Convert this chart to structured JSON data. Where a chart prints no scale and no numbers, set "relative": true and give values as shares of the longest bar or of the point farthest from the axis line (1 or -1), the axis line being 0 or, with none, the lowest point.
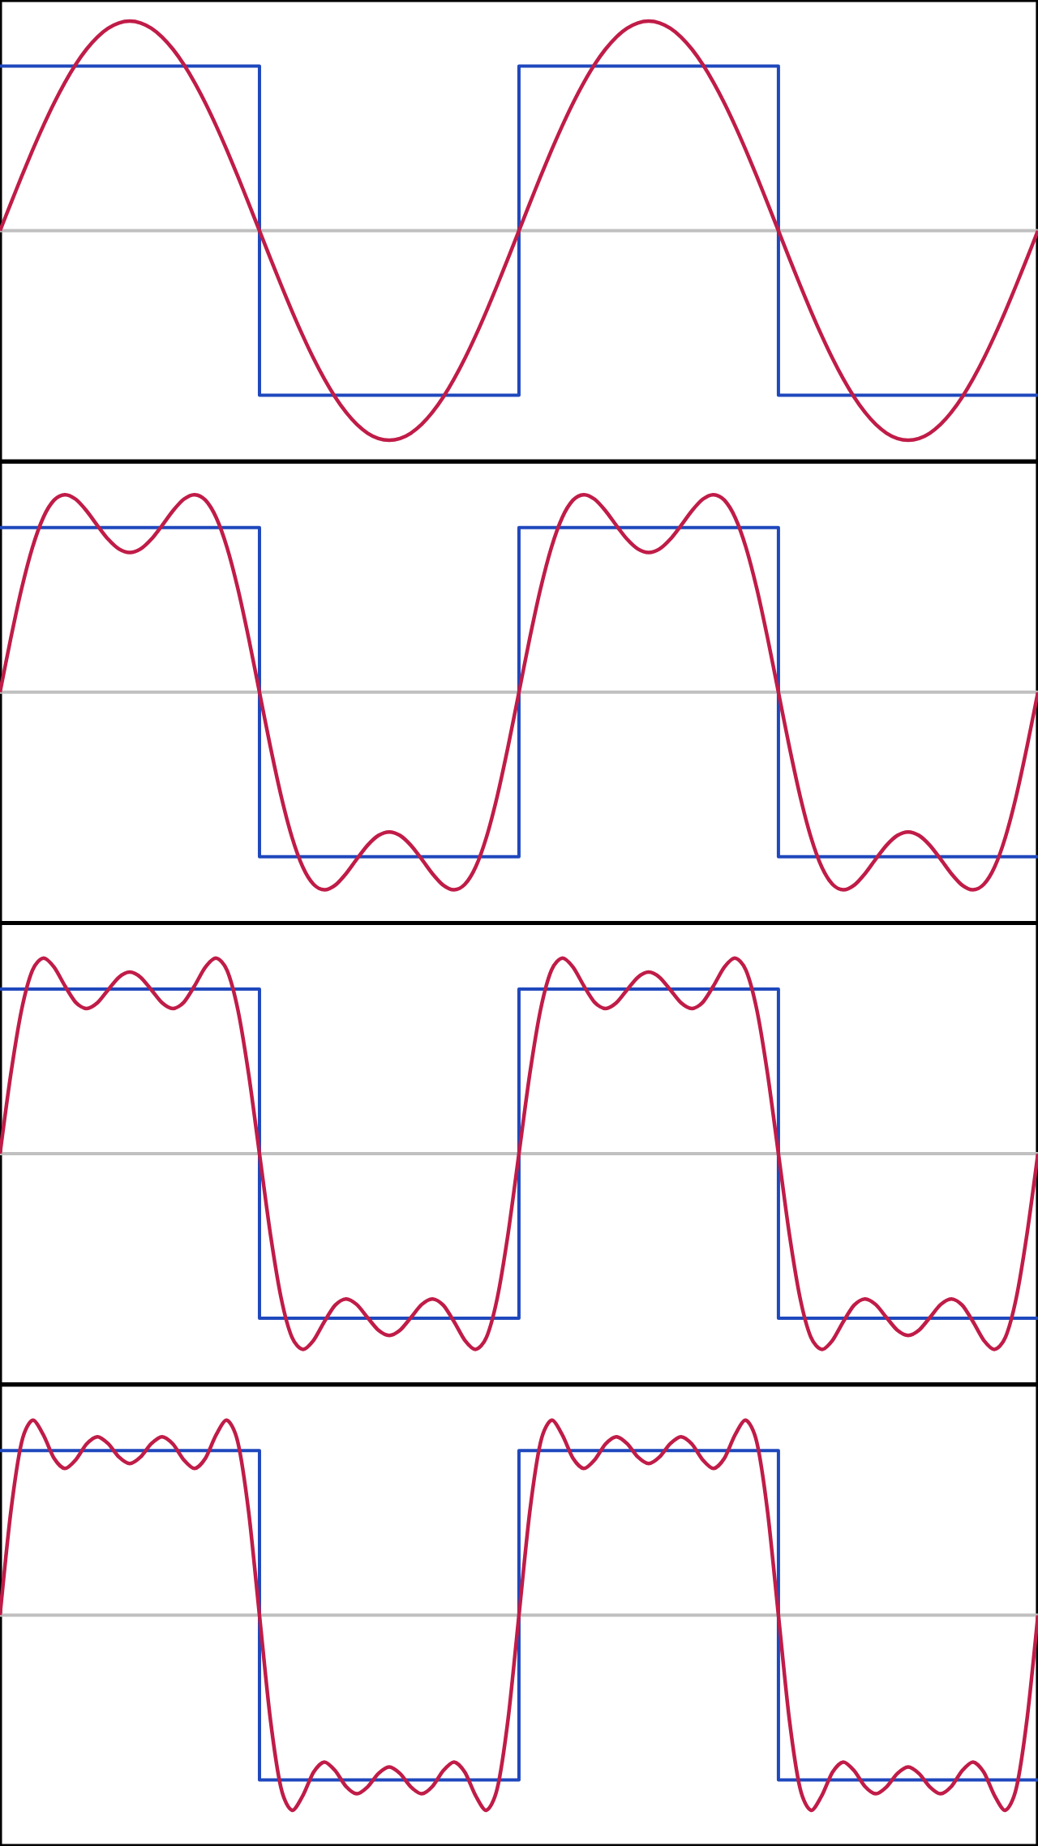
{
  "chart_data": [
    {
      "type": "line",
      "relative": true,
      "categories": [
        null,
        null,
        null,
        null,
        null,
        null,
        null,
        null,
        null,
        null,
        null,
        null,
        null,
        null,
        null,
        null,
        null,
        null,
        null,
        null,
        null,
        null,
        null,
        null,
        null,
        null,
        null,
        null,
        null,
        null,
        null,
        null,
        null,
        null,
        null,
        null,
        null,
        null,
        null,
        null,
        null,
        null,
        null,
        null,
        null,
        null,
        null,
        null,
        null,
        null,
        null,
        null,
        null,
        null,
        null,
        null,
        null,
        null,
        null,
        null,
        null,
        null,
        null,
        null,
        null,
        null,
        null,
        null,
        null,
        null,
        null,
        null,
        null,
        null,
        null,
        null,
        null,
        null,
        null,
        null,
        null,
        null,
        null,
        null,
        null,
        null,
        null,
        null,
        null,
        null,
        null,
        null,
        null,
        null,
        null,
        null,
        null
      ],
      "ref_lines": [
        {
          "axis": "y",
          "value": 0,
          "color": "#c0c0c0"
        }
      ],
      "series": [
        {
          "type": "step",
          "color": "#1f48bd",
          "values": [
            0.7854,
            0.7854,
            0.7854,
            0.7854,
            0.7854,
            0.7854,
            0.7854,
            0.7854,
            0.7854,
            0.7854,
            0.7854,
            0.7854,
            0.7854,
            0.7854,
            0.7854,
            0.7854,
            0.7854,
            0.7854,
            0.7854,
            0.7854,
            0.7854,
            0.7854,
            0.7854,
            0.7854,
            -0.7854,
            -0.7854,
            -0.7854,
            -0.7854,
            -0.7854,
            -0.7854,
            -0.7854,
            -0.7854,
            -0.7854,
            -0.7854,
            -0.7854,
            -0.7854,
            -0.7854,
            -0.7854,
            -0.7854,
            -0.7854,
            -0.7854,
            -0.7854,
            -0.7854,
            -0.7854,
            -0.7854,
            -0.7854,
            -0.7854,
            -0.7854,
            0.7854,
            0.7854,
            0.7854,
            0.7854,
            0.7854,
            0.7854,
            0.7854,
            0.7854,
            0.7854,
            0.7854,
            0.7854,
            0.7854,
            0.7854,
            0.7854,
            0.7854,
            0.7854,
            0.7854,
            0.7854,
            0.7854,
            0.7854,
            0.7854,
            0.7854,
            0.7854,
            0.7854,
            -0.7854,
            -0.7854,
            -0.7854,
            -0.7854,
            -0.7854,
            -0.7854,
            -0.7854,
            -0.7854,
            -0.7854,
            -0.7854,
            -0.7854,
            -0.7854,
            -0.7854,
            -0.7854,
            -0.7854,
            -0.7854,
            -0.7854,
            -0.7854,
            -0.7854,
            -0.7854,
            -0.7854,
            -0.7854,
            -0.7854,
            -0.7854,
            -0.7854
          ]
        },
        {
          "color": "#c01c48",
          "values": [
            0,
            0.1305,
            0.2588,
            0.3827,
            0.5,
            0.6088,
            0.7071,
            0.7934,
            0.866,
            0.9239,
            0.9659,
            0.9914,
            1,
            0.9914,
            0.9659,
            0.9239,
            0.866,
            0.7934,
            0.7071,
            0.6088,
            0.5,
            0.3827,
            0.2588,
            0.1305,
            0,
            -0.1305,
            -0.2588,
            -0.3827,
            -0.5,
            -0.6088,
            -0.7071,
            -0.7934,
            -0.866,
            -0.9239,
            -0.9659,
            -0.9914,
            -1,
            -0.9914,
            -0.9659,
            -0.9239,
            -0.866,
            -0.7934,
            -0.7071,
            -0.6088,
            -0.5,
            -0.3827,
            -0.2588,
            -0.1305,
            0,
            0.1305,
            0.2588,
            0.3827,
            0.5,
            0.6088,
            0.7071,
            0.7934,
            0.866,
            0.9239,
            0.9659,
            0.9914,
            1,
            0.9914,
            0.9659,
            0.9239,
            0.866,
            0.7934,
            0.7071,
            0.6088,
            0.5,
            0.3827,
            0.2588,
            0.1305,
            0,
            -0.1305,
            -0.2588,
            -0.3827,
            -0.5,
            -0.6088,
            -0.7071,
            -0.7934,
            -0.866,
            -0.9239,
            -0.9659,
            -0.9914,
            -1,
            -0.9914,
            -0.9659,
            -0.9239,
            -0.866,
            -0.7934,
            -0.7071,
            -0.6088,
            -0.5,
            -0.3827,
            -0.2588,
            -0.1305,
            0
          ]
        }
      ]
    },
    {
      "type": "line",
      "relative": true,
      "categories": [
        null,
        null,
        null,
        null,
        null,
        null,
        null,
        null,
        null,
        null,
        null,
        null,
        null,
        null,
        null,
        null,
        null,
        null,
        null,
        null,
        null,
        null,
        null,
        null,
        null,
        null,
        null,
        null,
        null,
        null,
        null,
        null,
        null,
        null,
        null,
        null,
        null,
        null,
        null,
        null,
        null,
        null,
        null,
        null,
        null,
        null,
        null,
        null,
        null,
        null,
        null,
        null,
        null,
        null,
        null,
        null,
        null,
        null,
        null,
        null,
        null,
        null,
        null,
        null,
        null,
        null,
        null,
        null,
        null,
        null,
        null,
        null,
        null,
        null,
        null,
        null,
        null,
        null,
        null,
        null,
        null,
        null,
        null,
        null,
        null,
        null,
        null,
        null,
        null,
        null,
        null,
        null,
        null,
        null,
        null,
        null,
        null
      ],
      "ref_lines": [
        {
          "axis": "y",
          "value": 0,
          "color": "#c0c0c0"
        }
      ],
      "series": [
        {
          "type": "step",
          "color": "#1f48bd",
          "values": [
            0.833,
            0.833,
            0.833,
            0.833,
            0.833,
            0.833,
            0.833,
            0.833,
            0.833,
            0.833,
            0.833,
            0.833,
            0.833,
            0.833,
            0.833,
            0.833,
            0.833,
            0.833,
            0.833,
            0.833,
            0.833,
            0.833,
            0.833,
            0.833,
            -0.833,
            -0.833,
            -0.833,
            -0.833,
            -0.833,
            -0.833,
            -0.833,
            -0.833,
            -0.833,
            -0.833,
            -0.833,
            -0.833,
            -0.833,
            -0.833,
            -0.833,
            -0.833,
            -0.833,
            -0.833,
            -0.833,
            -0.833,
            -0.833,
            -0.833,
            -0.833,
            -0.833,
            0.833,
            0.833,
            0.833,
            0.833,
            0.833,
            0.833,
            0.833,
            0.833,
            0.833,
            0.833,
            0.833,
            0.833,
            0.833,
            0.833,
            0.833,
            0.833,
            0.833,
            0.833,
            0.833,
            0.833,
            0.833,
            0.833,
            0.833,
            0.833,
            -0.833,
            -0.833,
            -0.833,
            -0.833,
            -0.833,
            -0.833,
            -0.833,
            -0.833,
            -0.833,
            -0.833,
            -0.833,
            -0.833,
            -0.833,
            -0.833,
            -0.833,
            -0.833,
            -0.833,
            -0.833,
            -0.833,
            -0.833,
            -0.833,
            -0.833,
            -0.833,
            -0.833,
            -0.833
          ]
        },
        {
          "color": "#c01c48",
          "values": [
            0,
            0.2737,
            0.5245,
            0.7325,
            0.8839,
            0.9723,
            1,
            0.9768,
            0.9186,
            0.8446,
            0.7745,
            0.7249,
            0.7071,
            0.7249,
            0.7745,
            0.8446,
            0.9186,
            0.9768,
            1,
            0.9723,
            0.8839,
            0.7325,
            0.5245,
            0.2737,
            0,
            -0.2737,
            -0.5245,
            -0.7325,
            -0.8839,
            -0.9723,
            -1,
            -0.9768,
            -0.9186,
            -0.8446,
            -0.7745,
            -0.7249,
            -0.7071,
            -0.7249,
            -0.7745,
            -0.8446,
            -0.9186,
            -0.9768,
            -1,
            -0.9723,
            -0.8839,
            -0.7325,
            -0.5245,
            -0.2737,
            0,
            0.2737,
            0.5245,
            0.7325,
            0.8839,
            0.9723,
            1,
            0.9768,
            0.9186,
            0.8446,
            0.7745,
            0.7249,
            0.7071,
            0.7249,
            0.7745,
            0.8446,
            0.9186,
            0.9768,
            1,
            0.9723,
            0.8839,
            0.7325,
            0.5245,
            0.2737,
            0,
            -0.2737,
            -0.5245,
            -0.7325,
            -0.8839,
            -0.9723,
            -1,
            -0.9768,
            -0.9186,
            -0.8446,
            -0.7745,
            -0.7249,
            -0.7071,
            -0.7249,
            -0.7745,
            -0.8446,
            -0.9186,
            -0.9768,
            -1,
            -0.9723,
            -0.8839,
            -0.7325,
            -0.5245,
            -0.2737,
            0
          ]
        }
      ]
    },
    {
      "type": "line",
      "relative": true,
      "categories": [
        null,
        null,
        null,
        null,
        null,
        null,
        null,
        null,
        null,
        null,
        null,
        null,
        null,
        null,
        null,
        null,
        null,
        null,
        null,
        null,
        null,
        null,
        null,
        null,
        null,
        null,
        null,
        null,
        null,
        null,
        null,
        null,
        null,
        null,
        null,
        null,
        null,
        null,
        null,
        null,
        null,
        null,
        null,
        null,
        null,
        null,
        null,
        null,
        null,
        null,
        null,
        null,
        null,
        null,
        null,
        null,
        null,
        null,
        null,
        null,
        null,
        null,
        null,
        null,
        null,
        null,
        null,
        null,
        null,
        null,
        null,
        null,
        null,
        null,
        null,
        null,
        null,
        null,
        null,
        null,
        null,
        null,
        null,
        null,
        null,
        null,
        null,
        null,
        null,
        null,
        null,
        null,
        null,
        null,
        null,
        null,
        null
      ],
      "ref_lines": [
        {
          "axis": "y",
          "value": 0,
          "color": "#c0c0c0"
        }
      ],
      "series": [
        {
          "type": "step",
          "color": "#1f48bd",
          "values": [
            0.8415,
            0.8415,
            0.8415,
            0.8415,
            0.8415,
            0.8415,
            0.8415,
            0.8415,
            0.8415,
            0.8415,
            0.8415,
            0.8415,
            0.8415,
            0.8415,
            0.8415,
            0.8415,
            0.8415,
            0.8415,
            0.8415,
            0.8415,
            0.8415,
            0.8415,
            0.8415,
            0.8415,
            -0.8415,
            -0.8415,
            -0.8415,
            -0.8415,
            -0.8415,
            -0.8415,
            -0.8415,
            -0.8415,
            -0.8415,
            -0.8415,
            -0.8415,
            -0.8415,
            -0.8415,
            -0.8415,
            -0.8415,
            -0.8415,
            -0.8415,
            -0.8415,
            -0.8415,
            -0.8415,
            -0.8415,
            -0.8415,
            -0.8415,
            -0.8415,
            0.8415,
            0.8415,
            0.8415,
            0.8415,
            0.8415,
            0.8415,
            0.8415,
            0.8415,
            0.8415,
            0.8415,
            0.8415,
            0.8415,
            0.8415,
            0.8415,
            0.8415,
            0.8415,
            0.8415,
            0.8415,
            0.8415,
            0.8415,
            0.8415,
            0.8415,
            0.8415,
            0.8415,
            -0.8415,
            -0.8415,
            -0.8415,
            -0.8415,
            -0.8415,
            -0.8415,
            -0.8415,
            -0.8415,
            -0.8415,
            -0.8415,
            -0.8415,
            -0.8415,
            -0.8415,
            -0.8415,
            -0.8415,
            -0.8415,
            -0.8415,
            -0.8415,
            -0.8415,
            -0.8415,
            -0.8415,
            -0.8415,
            -0.8415,
            -0.8415,
            -0.8415
          ]
        },
        {
          "color": "#c01c48",
          "values": [
            0,
            0.407,
            0.7368,
            0.938,
            1,
            0.9542,
            0.8586,
            0.7742,
            0.7423,
            0.7712,
            0.8379,
            0.9023,
            0.9286,
            0.9023,
            0.8379,
            0.7712,
            0.7423,
            0.7742,
            0.8586,
            0.9542,
            1,
            0.938,
            0.7368,
            0.407,
            0,
            -0.407,
            -0.7368,
            -0.938,
            -1,
            -0.9542,
            -0.8586,
            -0.7742,
            -0.7423,
            -0.7712,
            -0.8379,
            -0.9023,
            -0.9286,
            -0.9023,
            -0.8379,
            -0.7712,
            -0.7423,
            -0.7742,
            -0.8586,
            -0.9542,
            -1,
            -0.938,
            -0.7368,
            -0.407,
            0,
            0.407,
            0.7368,
            0.938,
            1,
            0.9542,
            0.8586,
            0.7742,
            0.7423,
            0.7712,
            0.8379,
            0.9023,
            0.9286,
            0.9023,
            0.8379,
            0.7712,
            0.7423,
            0.7742,
            0.8586,
            0.9542,
            1,
            0.938,
            0.7368,
            0.407,
            0,
            -0.407,
            -0.7368,
            -0.938,
            -1,
            -0.9542,
            -0.8586,
            -0.7742,
            -0.7423,
            -0.7712,
            -0.8379,
            -0.9023,
            -0.9286,
            -0.9023,
            -0.8379,
            -0.7712,
            -0.7423,
            -0.7742,
            -0.8586,
            -0.9542,
            -1,
            -0.938,
            -0.7368,
            -0.407,
            0
          ]
        }
      ]
    },
    {
      "type": "line",
      "relative": true,
      "categories": [
        null,
        null,
        null,
        null,
        null,
        null,
        null,
        null,
        null,
        null,
        null,
        null,
        null,
        null,
        null,
        null,
        null,
        null,
        null,
        null,
        null,
        null,
        null,
        null,
        null,
        null,
        null,
        null,
        null,
        null,
        null,
        null,
        null,
        null,
        null,
        null,
        null,
        null,
        null,
        null,
        null,
        null,
        null,
        null,
        null,
        null,
        null,
        null,
        null,
        null,
        null,
        null,
        null,
        null,
        null,
        null,
        null,
        null,
        null,
        null,
        null,
        null,
        null,
        null,
        null,
        null,
        null,
        null,
        null,
        null,
        null,
        null,
        null,
        null,
        null,
        null,
        null,
        null,
        null,
        null,
        null,
        null,
        null,
        null,
        null,
        null,
        null,
        null,
        null,
        null,
        null,
        null,
        null,
        null,
        null,
        null,
        null
      ],
      "ref_lines": [
        {
          "axis": "y",
          "value": 0,
          "color": "#c0c0c0"
        }
      ],
      "series": [
        {
          "type": "step",
          "color": "#1f48bd",
          "values": [
            0.8444,
            0.8444,
            0.8444,
            0.8444,
            0.8444,
            0.8444,
            0.8444,
            0.8444,
            0.8444,
            0.8444,
            0.8444,
            0.8444,
            0.8444,
            0.8444,
            0.8444,
            0.8444,
            0.8444,
            0.8444,
            0.8444,
            0.8444,
            0.8444,
            0.8444,
            0.8444,
            0.8444,
            -0.8444,
            -0.8444,
            -0.8444,
            -0.8444,
            -0.8444,
            -0.8444,
            -0.8444,
            -0.8444,
            -0.8444,
            -0.8444,
            -0.8444,
            -0.8444,
            -0.8444,
            -0.8444,
            -0.8444,
            -0.8444,
            -0.8444,
            -0.8444,
            -0.8444,
            -0.8444,
            -0.8444,
            -0.8444,
            -0.8444,
            -0.8444,
            0.8444,
            0.8444,
            0.8444,
            0.8444,
            0.8444,
            0.8444,
            0.8444,
            0.8444,
            0.8444,
            0.8444,
            0.8444,
            0.8444,
            0.8444,
            0.8444,
            0.8444,
            0.8444,
            0.8444,
            0.8444,
            0.8444,
            0.8444,
            0.8444,
            0.8444,
            0.8444,
            0.8444,
            -0.8444,
            -0.8444,
            -0.8444,
            -0.8444,
            -0.8444,
            -0.8444,
            -0.8444,
            -0.8444,
            -0.8444,
            -0.8444,
            -0.8444,
            -0.8444,
            -0.8444,
            -0.8444,
            -0.8444,
            -0.8444,
            -0.8444,
            -0.8444,
            -0.8444,
            -0.8444,
            -0.8444,
            -0.8444,
            -0.8444,
            -0.8444,
            -0.8444
          ]
        },
        {
          "color": "#c01c48",
          "values": [
            0,
            0.5303,
            0.8878,
            1,
            0.9267,
            0.8053,
            0.753,
            0.797,
            0.8779,
            0.9158,
            0.8805,
            0.8119,
            0.7782,
            0.8119,
            0.8805,
            0.9158,
            0.8779,
            0.797,
            0.753,
            0.8053,
            0.9267,
            1,
            0.8878,
            0.5303,
            0,
            -0.5303,
            -0.8878,
            -1,
            -0.9267,
            -0.8053,
            -0.753,
            -0.797,
            -0.8779,
            -0.9158,
            -0.8805,
            -0.8119,
            -0.7782,
            -0.8119,
            -0.8805,
            -0.9158,
            -0.8779,
            -0.797,
            -0.753,
            -0.8053,
            -0.9267,
            -1,
            -0.8878,
            -0.5303,
            0,
            0.5303,
            0.8878,
            1,
            0.9267,
            0.8053,
            0.753,
            0.797,
            0.8779,
            0.9158,
            0.8805,
            0.8119,
            0.7782,
            0.8119,
            0.8805,
            0.9158,
            0.8779,
            0.797,
            0.753,
            0.8053,
            0.9267,
            1,
            0.8878,
            0.5303,
            0,
            -0.5303,
            -0.8878,
            -1,
            -0.9267,
            -0.8053,
            -0.753,
            -0.797,
            -0.8779,
            -0.9158,
            -0.8805,
            -0.8119,
            -0.7782,
            -0.8119,
            -0.8805,
            -0.9158,
            -0.8779,
            -0.797,
            -0.753,
            -0.8053,
            -0.9267,
            -1,
            -0.8878,
            -0.5303,
            0
          ]
        }
      ]
    }
  ]
}
